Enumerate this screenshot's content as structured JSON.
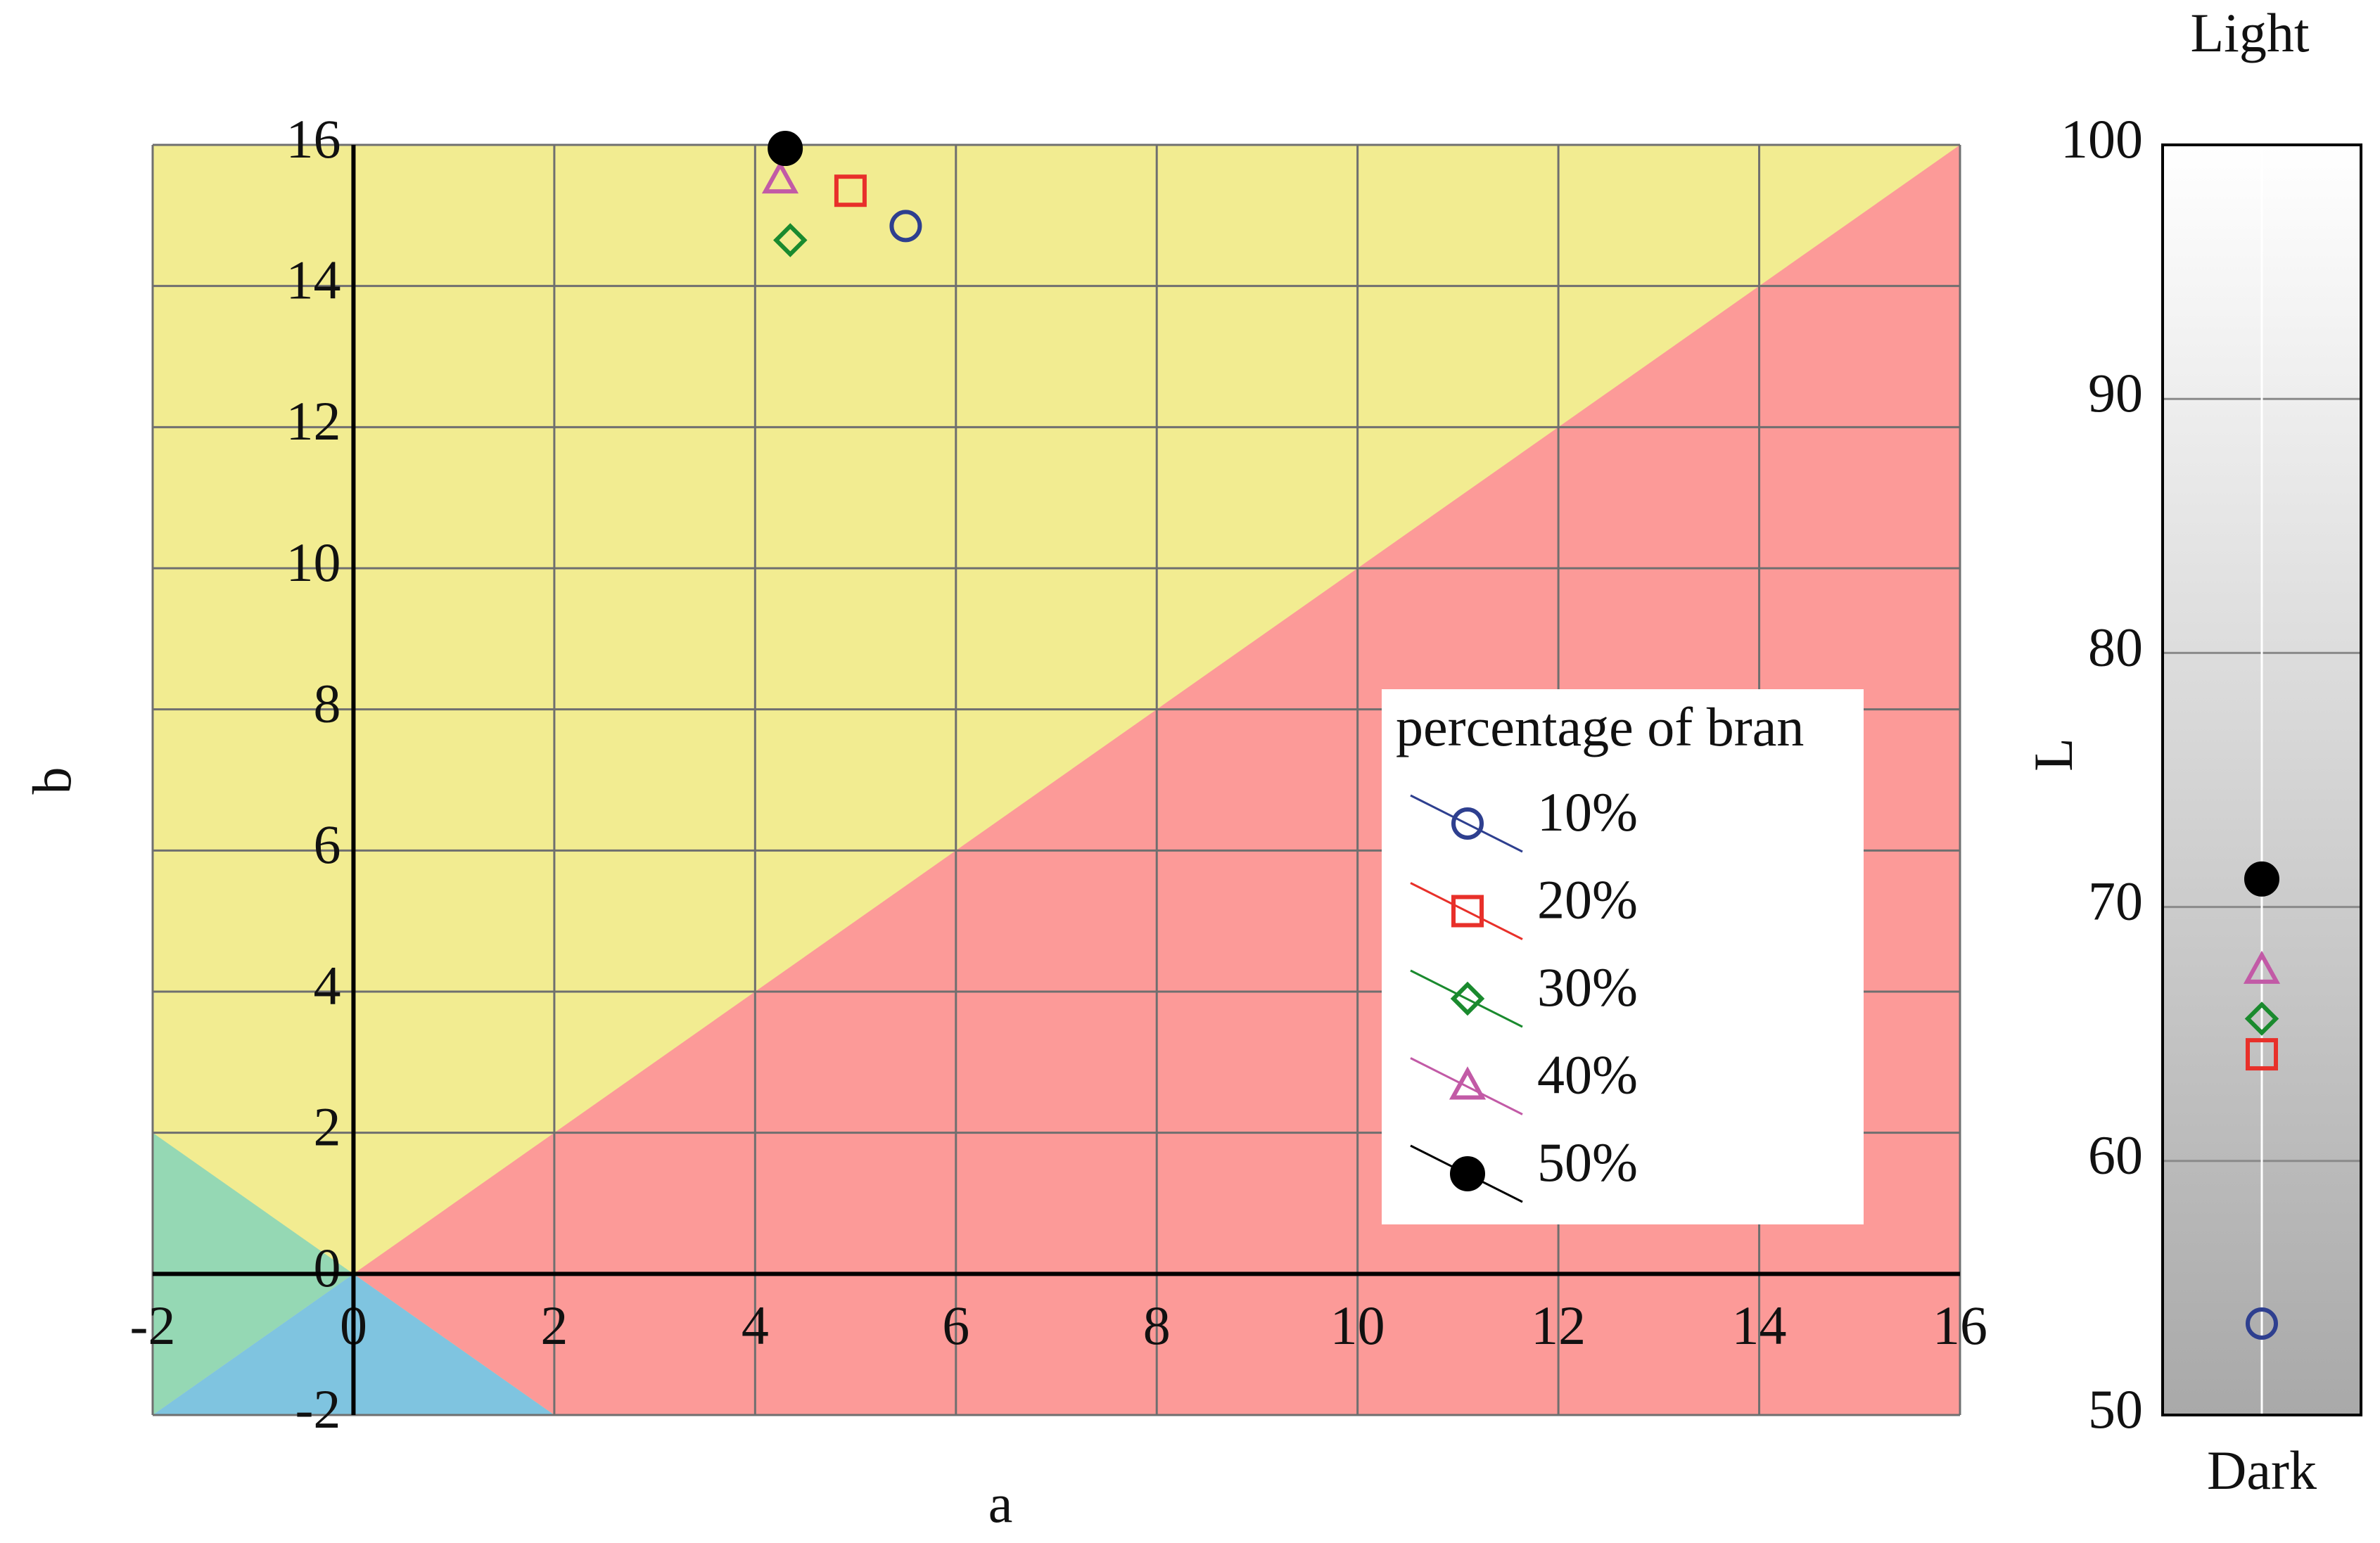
{
  "chart_data": [
    {
      "type": "scatter",
      "xlabel": "a",
      "ylabel": "b",
      "xlim": [
        -2,
        16
      ],
      "ylim": [
        -2,
        16
      ],
      "xticks": [
        -2,
        0,
        2,
        4,
        6,
        8,
        10,
        12,
        14,
        16
      ],
      "yticks": [
        -2,
        0,
        2,
        4,
        6,
        8,
        10,
        12,
        14,
        16
      ],
      "grid": true,
      "legend_title": "percentage of bran",
      "legend": "lower right",
      "series": [
        {
          "name": "10%",
          "color": "#2e3f8f",
          "marker": "circle",
          "x": [
            5.5
          ],
          "values": [
            14.85
          ]
        },
        {
          "name": "20%",
          "color": "#e8302a",
          "marker": "square",
          "x": [
            4.95
          ],
          "values": [
            15.35
          ]
        },
        {
          "name": "30%",
          "color": "#1a8a2e",
          "marker": "diamond",
          "x": [
            4.35
          ],
          "values": [
            14.65
          ]
        },
        {
          "name": "40%",
          "color": "#c25aa6",
          "marker": "triangle",
          "x": [
            4.25
          ],
          "values": [
            15.5
          ]
        },
        {
          "name": "50%",
          "color": "#000000",
          "marker": "dot",
          "x": [
            4.3
          ],
          "values": [
            15.95
          ]
        }
      ]
    },
    {
      "type": "strip",
      "title": "Light",
      "ylabel": "L",
      "categories": [
        "Dark"
      ],
      "ylim": [
        50,
        100
      ],
      "yticks": [
        50,
        60,
        70,
        80,
        90,
        100
      ],
      "grid": true,
      "series": [
        {
          "color": "#2e3f8f",
          "marker": "circle",
          "values": [
            53.6
          ]
        },
        {
          "color": "#e8302a",
          "marker": "square",
          "values": [
            64.2
          ]
        },
        {
          "color": "#1a8a2e",
          "marker": "diamond",
          "values": [
            65.6
          ]
        },
        {
          "color": "#c25aa6",
          "marker": "triangle",
          "values": [
            67.5
          ]
        },
        {
          "color": "#000000",
          "marker": "dot",
          "values": [
            71.1
          ]
        }
      ]
    }
  ]
}
